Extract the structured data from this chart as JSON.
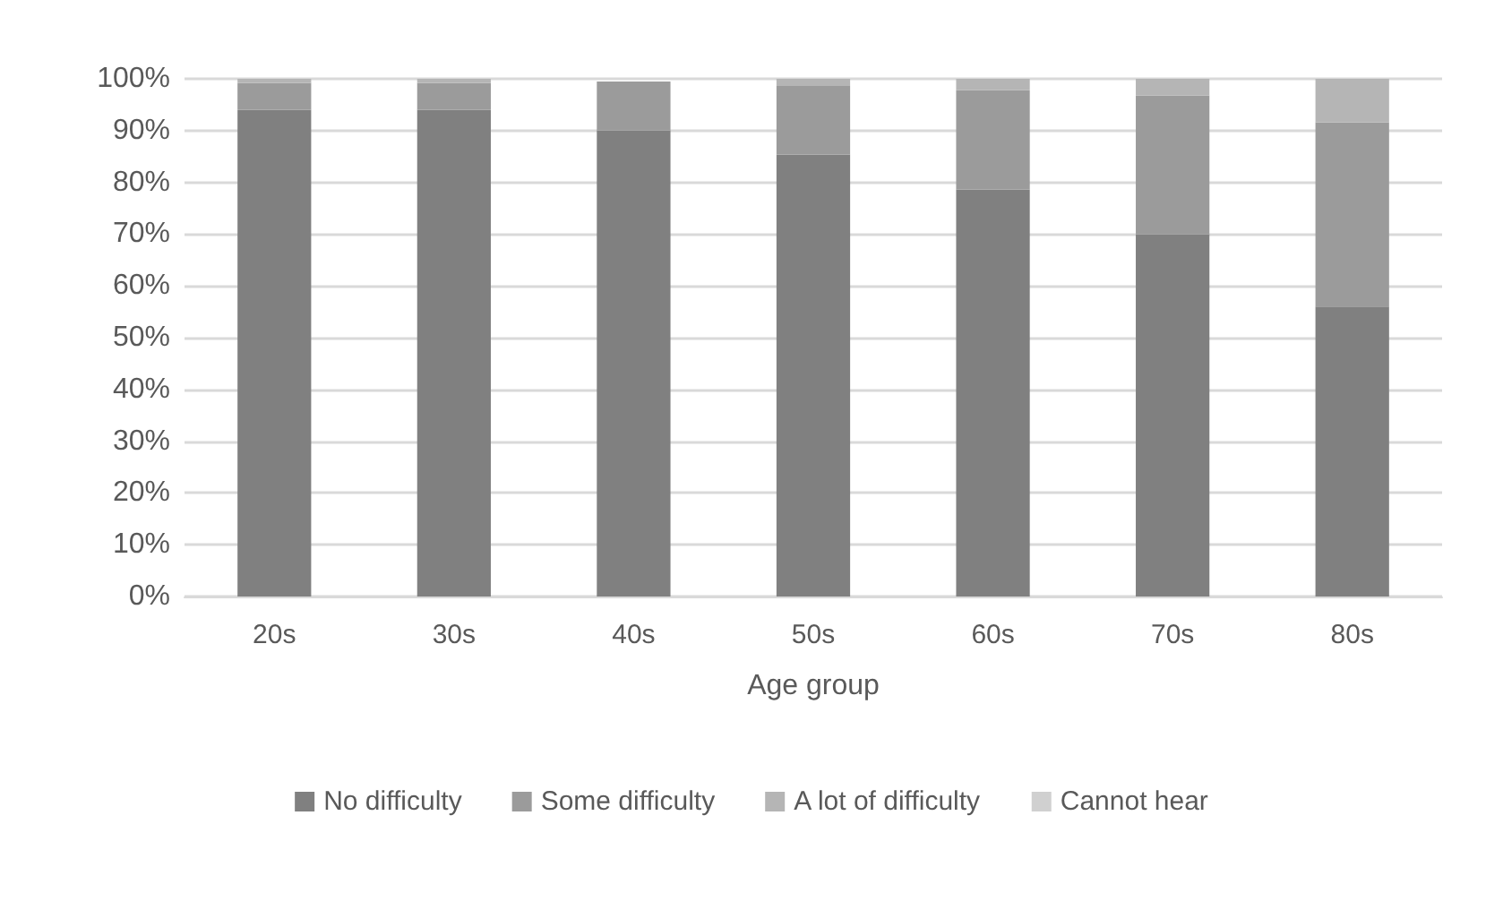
{
  "chart_data": {
    "type": "bar",
    "stacked": true,
    "xlabel": "Age group",
    "categories": [
      "20s",
      "30s",
      "40s",
      "50s",
      "60s",
      "70s",
      "80s"
    ],
    "series": [
      {
        "name": "No difficulty",
        "color": "#808080",
        "values": [
          94,
          94,
          90,
          85.4,
          78.6,
          70,
          56
        ]
      },
      {
        "name": "Some difficulty",
        "color": "#9b9b9b",
        "values": [
          5.2,
          5.2,
          9.5,
          13.2,
          19.2,
          26.8,
          35.6
        ]
      },
      {
        "name": "A lot of difficulty",
        "color": "#b5b5b5",
        "values": [
          0.8,
          0.8,
          null,
          1.4,
          2.2,
          3.2,
          8.4
        ]
      },
      {
        "name": "Cannot hear",
        "color": "#d0d0d0",
        "values": [
          0,
          0,
          0,
          0,
          0,
          0,
          0
        ]
      }
    ],
    "ylim": [
      0,
      100
    ],
    "yticks": [
      {
        "value": 0,
        "label": "0%"
      },
      {
        "value": 10,
        "label": "10%"
      },
      {
        "value": 20,
        "label": "20%"
      },
      {
        "value": 30,
        "label": "30%"
      },
      {
        "value": 40,
        "label": "40%"
      },
      {
        "value": 50,
        "label": "50%"
      },
      {
        "value": 60,
        "label": "60%"
      },
      {
        "value": 70,
        "label": "70%"
      },
      {
        "value": 80,
        "label": "80%"
      },
      {
        "value": 90,
        "label": "90%"
      },
      {
        "value": 100,
        "label": "100%"
      }
    ],
    "grid": "y",
    "legend": "bottom"
  }
}
